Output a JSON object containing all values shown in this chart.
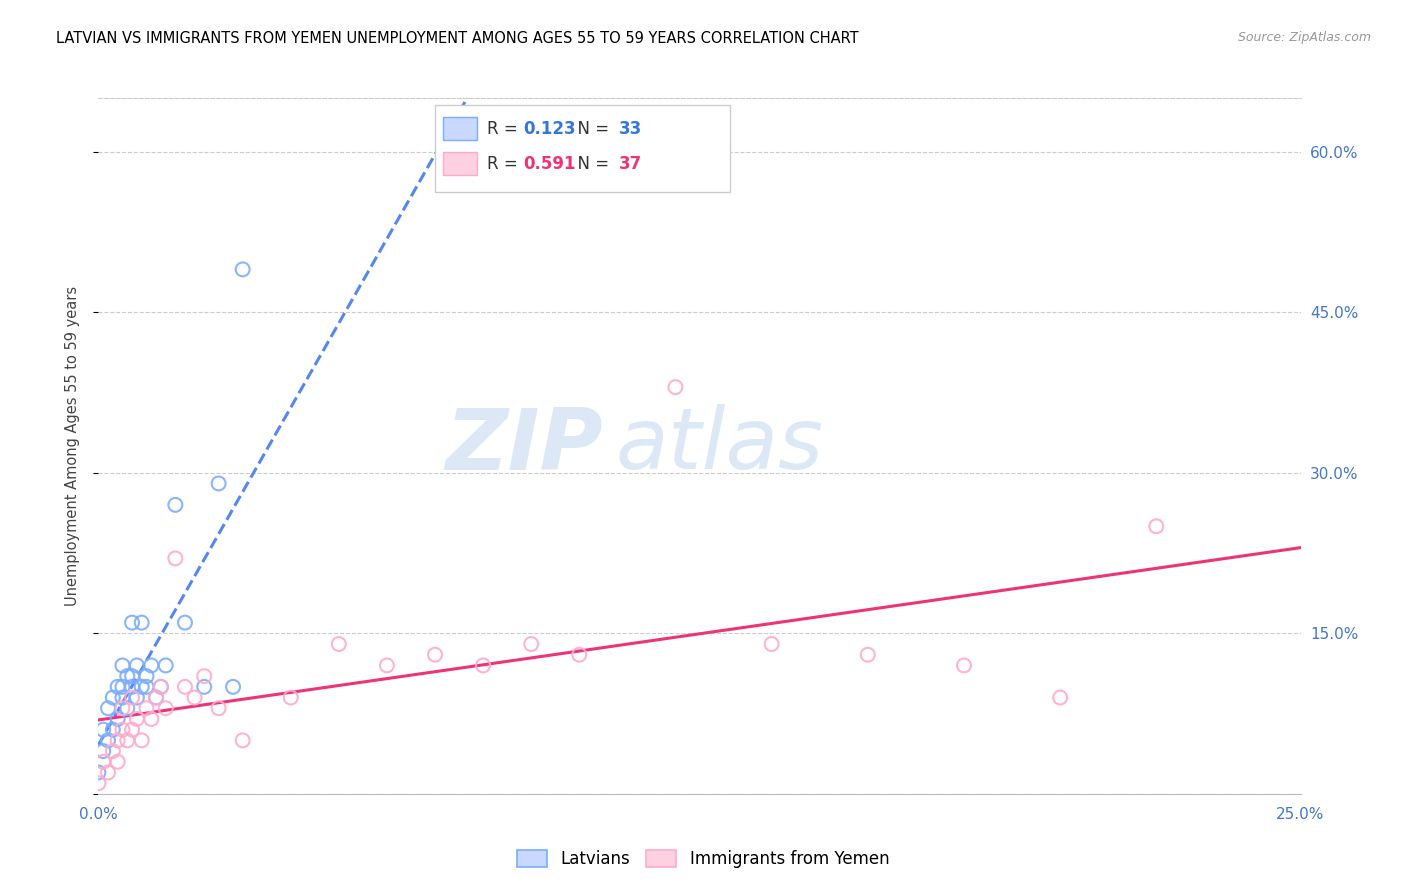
{
  "title": "LATVIAN VS IMMIGRANTS FROM YEMEN UNEMPLOYMENT AMONG AGES 55 TO 59 YEARS CORRELATION CHART",
  "source": "Source: ZipAtlas.com",
  "ylabel": "Unemployment Among Ages 55 to 59 years",
  "xlim": [
    0.0,
    0.25
  ],
  "ylim": [
    0.0,
    0.65
  ],
  "xticks": [
    0.0,
    0.025,
    0.05,
    0.075,
    0.1,
    0.125,
    0.15,
    0.175,
    0.2,
    0.225,
    0.25
  ],
  "yticks": [
    0.0,
    0.15,
    0.3,
    0.45,
    0.6
  ],
  "ytick_labels": [
    "",
    "15.0%",
    "30.0%",
    "45.0%",
    "60.0%"
  ],
  "xtick_labels": [
    "0.0%",
    "",
    "",
    "",
    "",
    "",
    "",
    "",
    "",
    "",
    "25.0%"
  ],
  "right_ytick_labels": [
    "",
    "15.0%",
    "30.0%",
    "45.0%",
    "60.0%"
  ],
  "legend_latvians_R": "0.123",
  "legend_latvians_N": "33",
  "legend_yemen_R": "0.591",
  "legend_yemen_N": "37",
  "latvians_color": "#7aadff",
  "yemen_color": "#ffaacc",
  "latvians_line_color": "#5588ee",
  "yemen_line_color": "#ee3377",
  "watermark_zip": "ZIP",
  "watermark_atlas": "atlas",
  "latvians_x": [
    0.0,
    0.001,
    0.001,
    0.002,
    0.002,
    0.003,
    0.003,
    0.004,
    0.004,
    0.005,
    0.005,
    0.005,
    0.006,
    0.006,
    0.007,
    0.007,
    0.007,
    0.008,
    0.008,
    0.009,
    0.009,
    0.01,
    0.01,
    0.011,
    0.012,
    0.013,
    0.014,
    0.016,
    0.018,
    0.022,
    0.025,
    0.028,
    0.03
  ],
  "latvians_y": [
    0.02,
    0.04,
    0.06,
    0.05,
    0.08,
    0.06,
    0.09,
    0.07,
    0.1,
    0.09,
    0.1,
    0.12,
    0.08,
    0.11,
    0.1,
    0.11,
    0.16,
    0.09,
    0.12,
    0.1,
    0.16,
    0.11,
    0.1,
    0.12,
    0.09,
    0.1,
    0.12,
    0.27,
    0.16,
    0.1,
    0.29,
    0.1,
    0.49
  ],
  "yemen_x": [
    0.0,
    0.001,
    0.002,
    0.003,
    0.004,
    0.004,
    0.005,
    0.005,
    0.006,
    0.007,
    0.007,
    0.008,
    0.009,
    0.01,
    0.011,
    0.012,
    0.013,
    0.014,
    0.016,
    0.018,
    0.02,
    0.022,
    0.025,
    0.03,
    0.04,
    0.05,
    0.06,
    0.07,
    0.08,
    0.09,
    0.1,
    0.12,
    0.14,
    0.16,
    0.18,
    0.2,
    0.22
  ],
  "yemen_y": [
    0.01,
    0.03,
    0.02,
    0.04,
    0.05,
    0.03,
    0.06,
    0.08,
    0.05,
    0.06,
    0.09,
    0.07,
    0.05,
    0.08,
    0.07,
    0.09,
    0.1,
    0.08,
    0.22,
    0.1,
    0.09,
    0.11,
    0.08,
    0.05,
    0.09,
    0.14,
    0.12,
    0.13,
    0.12,
    0.14,
    0.13,
    0.38,
    0.14,
    0.13,
    0.12,
    0.09,
    0.25
  ]
}
